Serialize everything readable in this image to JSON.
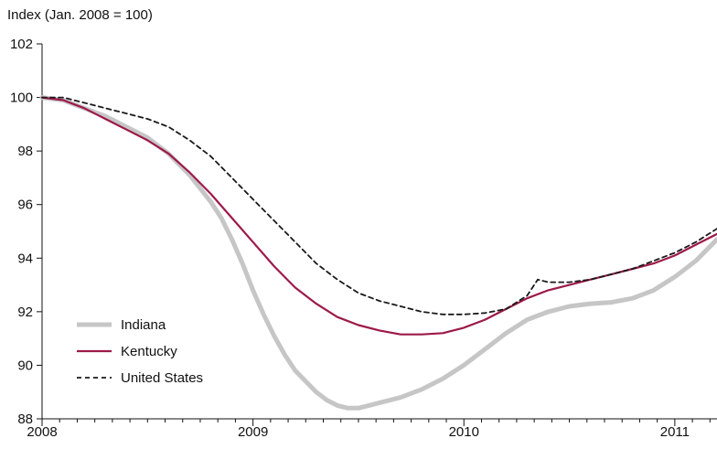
{
  "chart_data": {
    "type": "line",
    "title": "",
    "ylabel": "Index (Jan. 2008 = 100)",
    "xlabel": "",
    "ylim": [
      88,
      102
    ],
    "xlim": [
      2008.0,
      2011.2
    ],
    "y_ticks": [
      "88",
      "90",
      "92",
      "94",
      "96",
      "98",
      "100",
      "102"
    ],
    "x_ticks": [
      {
        "value": 2008,
        "label": "2008"
      },
      {
        "value": 2009,
        "label": "2009"
      },
      {
        "value": 2010,
        "label": "2010"
      },
      {
        "value": 2011,
        "label": "2011"
      }
    ],
    "grid": false,
    "legend_position": "bottom-left",
    "series": [
      {
        "name": "Indiana",
        "color": "#c6c6c6",
        "style": "solid-thick",
        "x": [
          2008.0,
          2008.1,
          2008.2,
          2008.3,
          2008.4,
          2008.5,
          2008.6,
          2008.7,
          2008.75,
          2008.8,
          2008.85,
          2008.9,
          2008.95,
          2009.0,
          2009.05,
          2009.1,
          2009.15,
          2009.2,
          2009.25,
          2009.3,
          2009.35,
          2009.4,
          2009.45,
          2009.5,
          2009.55,
          2009.6,
          2009.7,
          2009.8,
          2009.9,
          2010.0,
          2010.1,
          2010.2,
          2010.3,
          2010.4,
          2010.5,
          2010.6,
          2010.7,
          2010.8,
          2010.9,
          2011.0,
          2011.1,
          2011.2
        ],
        "y": [
          100.0,
          99.9,
          99.6,
          99.3,
          98.9,
          98.5,
          97.9,
          97.1,
          96.6,
          96.1,
          95.5,
          94.7,
          93.8,
          92.8,
          91.9,
          91.1,
          90.4,
          89.8,
          89.4,
          89.0,
          88.7,
          88.5,
          88.4,
          88.4,
          88.5,
          88.6,
          88.8,
          89.1,
          89.5,
          90.0,
          90.6,
          91.2,
          91.7,
          92.0,
          92.2,
          92.3,
          92.35,
          92.5,
          92.8,
          93.3,
          93.9,
          94.7
        ]
      },
      {
        "name": "Kentucky",
        "color": "#9c1a48",
        "style": "solid",
        "x": [
          2008.0,
          2008.1,
          2008.2,
          2008.3,
          2008.4,
          2008.5,
          2008.6,
          2008.7,
          2008.8,
          2008.9,
          2009.0,
          2009.1,
          2009.2,
          2009.3,
          2009.4,
          2009.5,
          2009.6,
          2009.7,
          2009.8,
          2009.9,
          2010.0,
          2010.1,
          2010.2,
          2010.3,
          2010.4,
          2010.5,
          2010.6,
          2010.7,
          2010.8,
          2010.9,
          2011.0,
          2011.1,
          2011.2
        ],
        "y": [
          100.0,
          99.9,
          99.6,
          99.2,
          98.8,
          98.4,
          97.9,
          97.2,
          96.4,
          95.5,
          94.6,
          93.7,
          92.9,
          92.3,
          91.8,
          91.5,
          91.3,
          91.15,
          91.15,
          91.2,
          91.4,
          91.7,
          92.1,
          92.5,
          92.8,
          93.0,
          93.2,
          93.4,
          93.6,
          93.8,
          94.1,
          94.5,
          94.9
        ]
      },
      {
        "name": "United States",
        "color": "#1a1a1a",
        "style": "dashed",
        "x": [
          2008.0,
          2008.1,
          2008.2,
          2008.3,
          2008.4,
          2008.5,
          2008.6,
          2008.7,
          2008.8,
          2008.9,
          2009.0,
          2009.1,
          2009.2,
          2009.3,
          2009.4,
          2009.5,
          2009.6,
          2009.7,
          2009.8,
          2009.9,
          2010.0,
          2010.1,
          2010.2,
          2010.3,
          2010.35,
          2010.4,
          2010.5,
          2010.6,
          2010.7,
          2010.8,
          2010.9,
          2011.0,
          2011.1,
          2011.2
        ],
        "y": [
          100.0,
          100.0,
          99.8,
          99.6,
          99.4,
          99.2,
          98.9,
          98.4,
          97.8,
          97.0,
          96.2,
          95.4,
          94.6,
          93.8,
          93.2,
          92.7,
          92.4,
          92.2,
          92.0,
          91.9,
          91.9,
          91.95,
          92.1,
          92.6,
          93.2,
          93.1,
          93.1,
          93.2,
          93.4,
          93.6,
          93.9,
          94.2,
          94.6,
          95.1
        ]
      }
    ]
  }
}
